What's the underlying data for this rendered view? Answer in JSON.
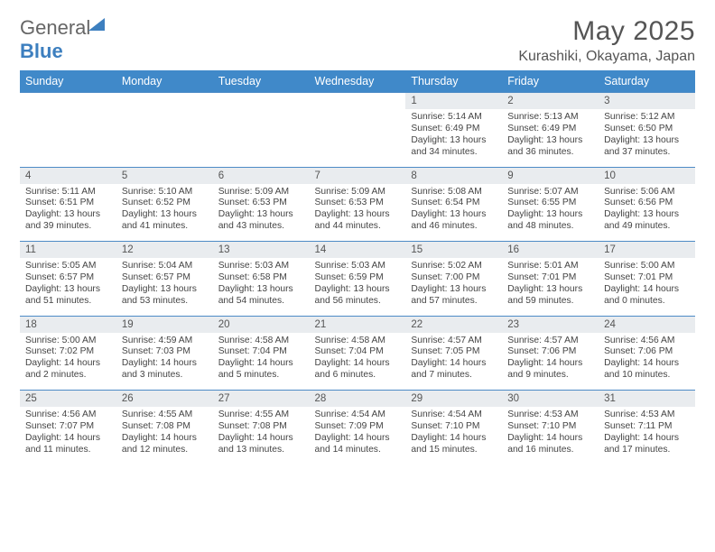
{
  "brand": {
    "general": "General",
    "blue": "Blue"
  },
  "title": "May 2025",
  "location": "Kurashiki, Okayama, Japan",
  "colors": {
    "header_bg": "#4089c9",
    "header_text": "#ffffff",
    "daynum_bg": "#e9ecef",
    "row_divider": "#4d8bc6",
    "text": "#444444",
    "brand_blue": "#3d7fbf"
  },
  "daysOfWeek": [
    "Sunday",
    "Monday",
    "Tuesday",
    "Wednesday",
    "Thursday",
    "Friday",
    "Saturday"
  ],
  "weeks": [
    {
      "cells": [
        null,
        null,
        null,
        null,
        {
          "n": "1",
          "sr": "Sunrise: 5:14 AM",
          "ss": "Sunset: 6:49 PM",
          "dl": "Daylight: 13 hours and 34 minutes."
        },
        {
          "n": "2",
          "sr": "Sunrise: 5:13 AM",
          "ss": "Sunset: 6:49 PM",
          "dl": "Daylight: 13 hours and 36 minutes."
        },
        {
          "n": "3",
          "sr": "Sunrise: 5:12 AM",
          "ss": "Sunset: 6:50 PM",
          "dl": "Daylight: 13 hours and 37 minutes."
        }
      ]
    },
    {
      "cells": [
        {
          "n": "4",
          "sr": "Sunrise: 5:11 AM",
          "ss": "Sunset: 6:51 PM",
          "dl": "Daylight: 13 hours and 39 minutes."
        },
        {
          "n": "5",
          "sr": "Sunrise: 5:10 AM",
          "ss": "Sunset: 6:52 PM",
          "dl": "Daylight: 13 hours and 41 minutes."
        },
        {
          "n": "6",
          "sr": "Sunrise: 5:09 AM",
          "ss": "Sunset: 6:53 PM",
          "dl": "Daylight: 13 hours and 43 minutes."
        },
        {
          "n": "7",
          "sr": "Sunrise: 5:09 AM",
          "ss": "Sunset: 6:53 PM",
          "dl": "Daylight: 13 hours and 44 minutes."
        },
        {
          "n": "8",
          "sr": "Sunrise: 5:08 AM",
          "ss": "Sunset: 6:54 PM",
          "dl": "Daylight: 13 hours and 46 minutes."
        },
        {
          "n": "9",
          "sr": "Sunrise: 5:07 AM",
          "ss": "Sunset: 6:55 PM",
          "dl": "Daylight: 13 hours and 48 minutes."
        },
        {
          "n": "10",
          "sr": "Sunrise: 5:06 AM",
          "ss": "Sunset: 6:56 PM",
          "dl": "Daylight: 13 hours and 49 minutes."
        }
      ]
    },
    {
      "cells": [
        {
          "n": "11",
          "sr": "Sunrise: 5:05 AM",
          "ss": "Sunset: 6:57 PM",
          "dl": "Daylight: 13 hours and 51 minutes."
        },
        {
          "n": "12",
          "sr": "Sunrise: 5:04 AM",
          "ss": "Sunset: 6:57 PM",
          "dl": "Daylight: 13 hours and 53 minutes."
        },
        {
          "n": "13",
          "sr": "Sunrise: 5:03 AM",
          "ss": "Sunset: 6:58 PM",
          "dl": "Daylight: 13 hours and 54 minutes."
        },
        {
          "n": "14",
          "sr": "Sunrise: 5:03 AM",
          "ss": "Sunset: 6:59 PM",
          "dl": "Daylight: 13 hours and 56 minutes."
        },
        {
          "n": "15",
          "sr": "Sunrise: 5:02 AM",
          "ss": "Sunset: 7:00 PM",
          "dl": "Daylight: 13 hours and 57 minutes."
        },
        {
          "n": "16",
          "sr": "Sunrise: 5:01 AM",
          "ss": "Sunset: 7:01 PM",
          "dl": "Daylight: 13 hours and 59 minutes."
        },
        {
          "n": "17",
          "sr": "Sunrise: 5:00 AM",
          "ss": "Sunset: 7:01 PM",
          "dl": "Daylight: 14 hours and 0 minutes."
        }
      ]
    },
    {
      "cells": [
        {
          "n": "18",
          "sr": "Sunrise: 5:00 AM",
          "ss": "Sunset: 7:02 PM",
          "dl": "Daylight: 14 hours and 2 minutes."
        },
        {
          "n": "19",
          "sr": "Sunrise: 4:59 AM",
          "ss": "Sunset: 7:03 PM",
          "dl": "Daylight: 14 hours and 3 minutes."
        },
        {
          "n": "20",
          "sr": "Sunrise: 4:58 AM",
          "ss": "Sunset: 7:04 PM",
          "dl": "Daylight: 14 hours and 5 minutes."
        },
        {
          "n": "21",
          "sr": "Sunrise: 4:58 AM",
          "ss": "Sunset: 7:04 PM",
          "dl": "Daylight: 14 hours and 6 minutes."
        },
        {
          "n": "22",
          "sr": "Sunrise: 4:57 AM",
          "ss": "Sunset: 7:05 PM",
          "dl": "Daylight: 14 hours and 7 minutes."
        },
        {
          "n": "23",
          "sr": "Sunrise: 4:57 AM",
          "ss": "Sunset: 7:06 PM",
          "dl": "Daylight: 14 hours and 9 minutes."
        },
        {
          "n": "24",
          "sr": "Sunrise: 4:56 AM",
          "ss": "Sunset: 7:06 PM",
          "dl": "Daylight: 14 hours and 10 minutes."
        }
      ]
    },
    {
      "cells": [
        {
          "n": "25",
          "sr": "Sunrise: 4:56 AM",
          "ss": "Sunset: 7:07 PM",
          "dl": "Daylight: 14 hours and 11 minutes."
        },
        {
          "n": "26",
          "sr": "Sunrise: 4:55 AM",
          "ss": "Sunset: 7:08 PM",
          "dl": "Daylight: 14 hours and 12 minutes."
        },
        {
          "n": "27",
          "sr": "Sunrise: 4:55 AM",
          "ss": "Sunset: 7:08 PM",
          "dl": "Daylight: 14 hours and 13 minutes."
        },
        {
          "n": "28",
          "sr": "Sunrise: 4:54 AM",
          "ss": "Sunset: 7:09 PM",
          "dl": "Daylight: 14 hours and 14 minutes."
        },
        {
          "n": "29",
          "sr": "Sunrise: 4:54 AM",
          "ss": "Sunset: 7:10 PM",
          "dl": "Daylight: 14 hours and 15 minutes."
        },
        {
          "n": "30",
          "sr": "Sunrise: 4:53 AM",
          "ss": "Sunset: 7:10 PM",
          "dl": "Daylight: 14 hours and 16 minutes."
        },
        {
          "n": "31",
          "sr": "Sunrise: 4:53 AM",
          "ss": "Sunset: 7:11 PM",
          "dl": "Daylight: 14 hours and 17 minutes."
        }
      ]
    }
  ]
}
